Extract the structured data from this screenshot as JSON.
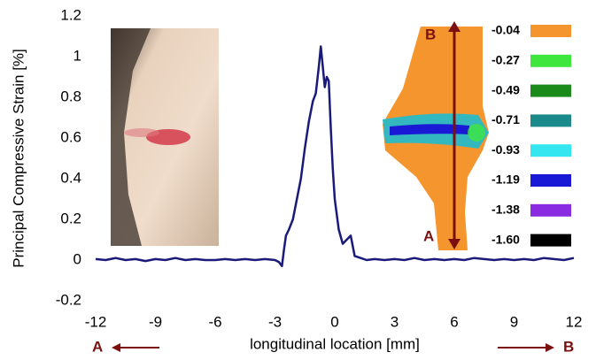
{
  "chart_data": {
    "type": "line",
    "xlabel": "longitudinal location [mm]",
    "ylabel": "Principal Compressive Strain [%]",
    "xlim": [
      -12,
      12
    ],
    "ylim": [
      -0.2,
      1.2
    ],
    "xticks": [
      -12,
      -9,
      -6,
      -3,
      0,
      3,
      6,
      9,
      12
    ],
    "yticks": [
      -0.2,
      0,
      0.2,
      0.4,
      0.6,
      0.8,
      1,
      1.2
    ],
    "x": [
      -12,
      -11.5,
      -11,
      -10.5,
      -10,
      -9.5,
      -9,
      -8.5,
      -8,
      -7.5,
      -7,
      -6.5,
      -6,
      -5.5,
      -5,
      -4.5,
      -4,
      -3.5,
      -3,
      -2.8,
      -2.65,
      -2.55,
      -2.45,
      -2.3,
      -2.1,
      -1.9,
      -1.7,
      -1.5,
      -1.3,
      -1.1,
      -0.95,
      -0.8,
      -0.7,
      -0.6,
      -0.5,
      -0.4,
      -0.3,
      -0.2,
      -0.1,
      0,
      0.2,
      0.4,
      0.6,
      0.8,
      1,
      1.3,
      1.6,
      2,
      2.5,
      3,
      3.5,
      4,
      4.5,
      5,
      5.5,
      6,
      6.5,
      7,
      7.5,
      8,
      8.5,
      9,
      9.5,
      10,
      10.5,
      11,
      11.5,
      12
    ],
    "series": [
      {
        "color": "#1a1a7a",
        "values": [
          0.005,
          0,
          0.01,
          0,
          0.005,
          -0.005,
          0.005,
          0,
          0.01,
          0,
          0.005,
          0,
          0,
          0.005,
          0,
          0.005,
          0,
          0.005,
          0,
          -0.01,
          -0.03,
          0.05,
          0.12,
          0.15,
          0.2,
          0.3,
          0.4,
          0.55,
          0.68,
          0.78,
          0.82,
          0.95,
          1.05,
          0.95,
          0.85,
          0.9,
          0.88,
          0.65,
          0.45,
          0.3,
          0.15,
          0.08,
          0.1,
          0.12,
          0.02,
          0.01,
          0,
          0.005,
          0,
          0.005,
          0,
          0.01,
          0,
          0.005,
          0,
          0.005,
          0,
          0.01,
          0.005,
          0,
          0.005,
          0,
          0.005,
          0,
          0.01,
          0.005,
          0,
          0.01
        ]
      }
    ],
    "colorbar": {
      "labels": [
        "-0.04",
        "-0.27",
        "-0.49",
        "-0.71",
        "-0.93",
        "-1.19",
        "-1.38",
        "-1.60"
      ],
      "colors": [
        "#f5952e",
        "#3ee63e",
        "#1a8a1a",
        "#1a8a8a",
        "#33e6f0",
        "#1a1ad6",
        "#8a2be2",
        "#000000"
      ]
    },
    "annotations": {
      "map_top": "B",
      "map_bottom": "A",
      "axis_left": "A",
      "axis_right": "B"
    }
  }
}
